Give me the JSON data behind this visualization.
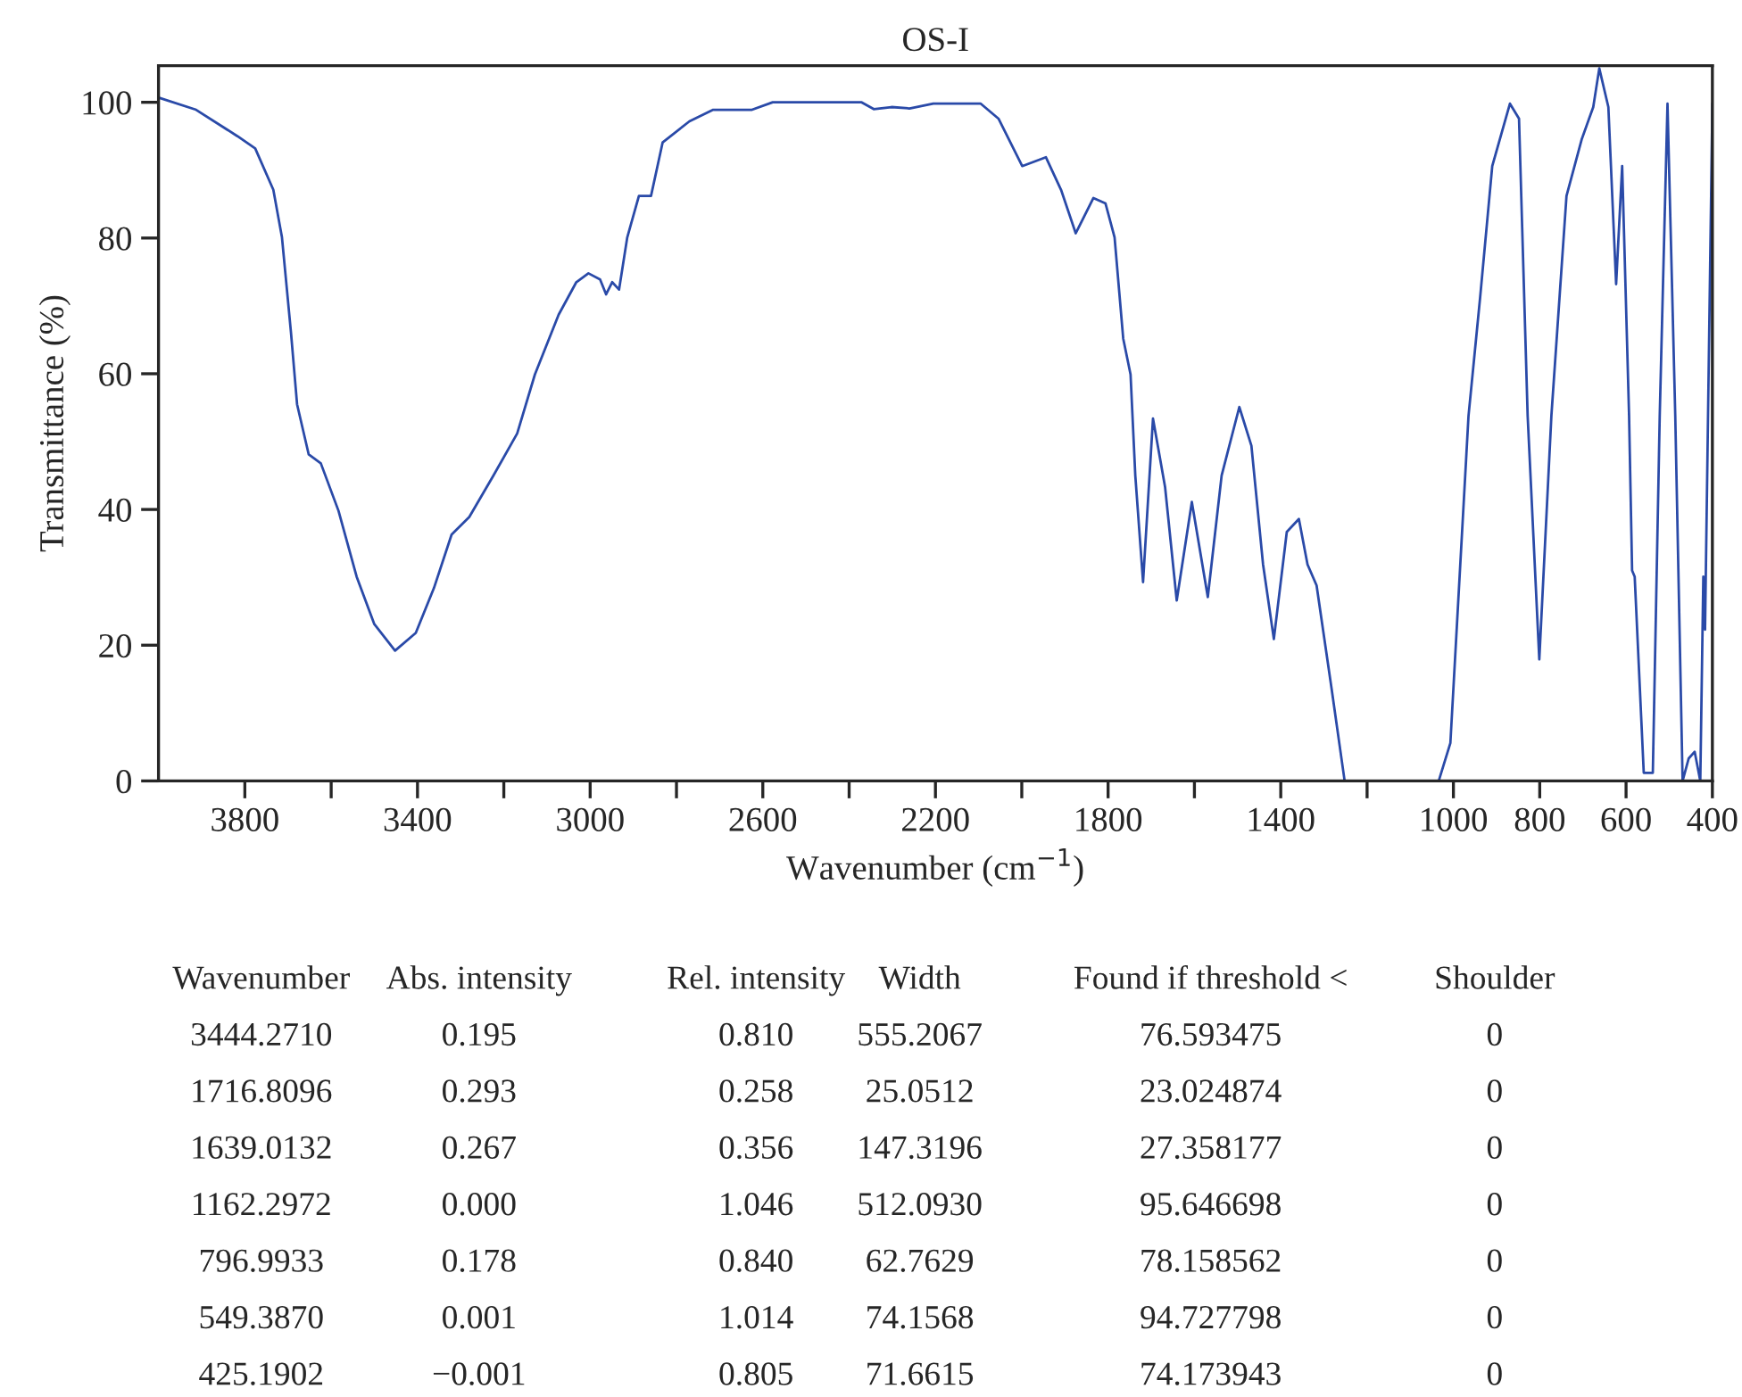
{
  "chart_data": {
    "type": "line",
    "title": "OS-I",
    "xlabel": "Wavenumber (cm$^{−1}$)",
    "ylabel": "Transmittance (%)",
    "xlim": [
      4000,
      400
    ],
    "ylim": [
      0,
      105.4
    ],
    "xticks": [
      3800,
      {
        "value": 3600,
        "label": null
      },
      3400,
      {
        "value": 3200,
        "label": null
      },
      3000,
      {
        "value": 2800,
        "label": null
      },
      2600,
      {
        "value": 2400,
        "label": null
      },
      2200,
      {
        "value": 2000,
        "label": null
      },
      1800,
      {
        "value": 1600,
        "label": null
      },
      1400,
      {
        "value": 1200,
        "label": null
      },
      1000,
      800,
      600,
      400
    ],
    "yticks": [
      0,
      20,
      40,
      60,
      80,
      100
    ],
    "grid": false,
    "legend": false,
    "marker": "none",
    "line_style": "solid",
    "series": [
      {
        "color": "#2a4aa8",
        "x": [
          4000,
          3913,
          3817,
          3776,
          3734,
          3714,
          3693,
          3679,
          3652,
          3624,
          3583,
          3541,
          3500,
          3452,
          3404,
          3362,
          3321,
          3280,
          3224,
          3169,
          3128,
          3073,
          3032,
          3004,
          2977,
          2963,
          2949,
          2933,
          2914,
          2887,
          2859,
          2832,
          2770,
          2715,
          2674,
          2625,
          2577,
          2371,
          2343,
          2302,
          2260,
          2205,
          2095,
          2054,
          1999,
          1944,
          1909,
          1875,
          1834,
          1806,
          1785,
          1765,
          1748,
          1737,
          1719,
          1696,
          1668,
          1641,
          1606,
          1569,
          1537,
          1496,
          1468,
          1441,
          1416,
          1386,
          1358,
          1338,
          1317,
          1282,
          1252,
          1034,
          1007,
          965,
          938,
          910,
          869,
          848,
          828,
          801,
          773,
          738,
          703,
          676,
          662,
          641,
          623,
          609,
          593,
          586,
          580,
          559,
          538,
          522,
          504,
          486,
          469,
          455,
          441,
          428,
          421,
          417,
          400
        ],
        "values": [
          100.7,
          98.9,
          95.0,
          93.2,
          87.1,
          80.1,
          66.0,
          55.5,
          48.1,
          46.8,
          39.8,
          30.1,
          23.1,
          19.2,
          21.8,
          28.4,
          36.3,
          38.9,
          45.0,
          51.2,
          59.9,
          68.7,
          73.5,
          74.8,
          73.9,
          71.7,
          73.5,
          72.4,
          80.1,
          86.2,
          86.2,
          94.1,
          97.2,
          98.9,
          98.9,
          98.9,
          100.0,
          100.0,
          99.0,
          99.3,
          99.1,
          99.8,
          99.8,
          97.6,
          90.6,
          91.9,
          87.1,
          80.7,
          85.9,
          85.1,
          80.1,
          65.2,
          59.9,
          45.0,
          29.3,
          53.4,
          43.3,
          26.6,
          41.1,
          27.1,
          45.0,
          55.1,
          49.4,
          31.9,
          20.9,
          36.7,
          38.6,
          31.9,
          28.8,
          13.5,
          0,
          0,
          5.6,
          53.8,
          71.3,
          90.6,
          99.8,
          97.6,
          53.8,
          17.9,
          53.8,
          86.2,
          94.5,
          99.3,
          105.0,
          99.3,
          73.2,
          90.6,
          53.8,
          31.0,
          30.1,
          1.2,
          1.2,
          53.8,
          99.8,
          53.8,
          0,
          3.3,
          4.3,
          0,
          30.1,
          22.3,
          99.8
        ]
      }
    ],
    "annotations": [
      "Wavenumber",
      "Abs. intensity",
      "Rel. intensity",
      "Width",
      "Found if threshold <",
      "Shoulder",
      "3444.2710",
      "0.195",
      "0.810",
      "555.2067",
      "76.593475",
      "0",
      "1716.8096",
      "0.293",
      "0.258",
      "25.0512",
      "23.024874",
      "0",
      "1639.0132",
      "0.267",
      "0.356",
      "147.3196",
      "27.358177",
      "0",
      "1162.2972",
      "0.000",
      "1.046",
      "512.0930",
      "95.646698",
      "0",
      "796.9933",
      "0.178",
      "0.840",
      "62.7629",
      "78.158562",
      "0",
      "549.3870",
      "0.001",
      "1.014",
      "74.1568",
      "94.727798",
      "0",
      "425.1902",
      "−0.001",
      "0.805",
      "71.6615",
      "74.173943",
      "0"
    ]
  }
}
